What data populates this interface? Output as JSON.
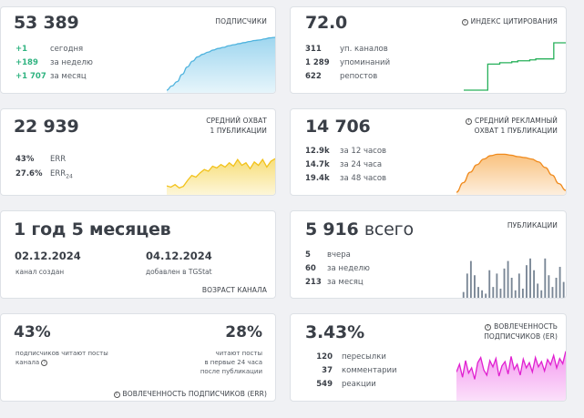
{
  "subscribers": {
    "total": "53 389",
    "header": "ПОДПИСЧИКИ",
    "rows": [
      {
        "value": "+1",
        "label": "сегодня"
      },
      {
        "value": "+189",
        "label": "за неделю"
      },
      {
        "value": "+1 707",
        "label": "за месяц"
      }
    ]
  },
  "citation": {
    "value": "72.0",
    "header": "ИНДЕКС ЦИТИРОВАНИЯ",
    "rows": [
      {
        "value": "311",
        "label": "уп. каналов"
      },
      {
        "value": "1 289",
        "label": "упоминаний"
      },
      {
        "value": "622",
        "label": "репостов"
      }
    ]
  },
  "avg_reach": {
    "value": "22 939",
    "header_line1": "СРЕДНИЙ ОХВАТ",
    "header_line2": "1 ПУБЛИКАЦИИ",
    "err_value": "43%",
    "err_label": "ERR",
    "err24_value": "27.6%",
    "err24_label": "ERR",
    "err24_sub": "24"
  },
  "ad_reach": {
    "value": "14 706",
    "header_line1": "СРЕДНИЙ РЕКЛАМНЫЙ",
    "header_line2": "ОХВАТ 1 ПУБЛИКАЦИИ",
    "rows": [
      {
        "value": "12.9k",
        "label": "за 12 часов"
      },
      {
        "value": "14.7k",
        "label": "за 24 часа"
      },
      {
        "value": "19.4k",
        "label": "за 48 часов"
      }
    ]
  },
  "age": {
    "value": "1 год 5 месяцев",
    "created_date": "02.12.2024",
    "created_label": "канал создан",
    "added_date": "04.12.2024",
    "added_label": "добавлен в TGStat",
    "footer": "ВОЗРАСТ КАНАЛА"
  },
  "posts": {
    "value": "5 916",
    "value_suffix": "всего",
    "header": "ПУБЛИКАЦИИ",
    "rows": [
      {
        "value": "5",
        "label": "вчера"
      },
      {
        "value": "60",
        "label": "за неделю"
      },
      {
        "value": "213",
        "label": "за месяц"
      }
    ]
  },
  "subscriber_engagement": {
    "left_value": "43%",
    "left_label_line1": "подписчиков читают посты",
    "left_label_line2": "канала",
    "right_value": "28%",
    "right_label_line1": "читают посты",
    "right_label_line2": "в первые 24 часа",
    "right_label_line3": "после публикации",
    "footer": "ВОВЛЕЧЕННОСТЬ ПОДПИСЧИКОВ (ERR)"
  },
  "engagement": {
    "value": "3.43%",
    "header_line1": "ВОВЛЕЧЕННОСТЬ",
    "header_line2": "ПОДПИСЧИКОВ (ER)",
    "rows": [
      {
        "value": "120",
        "label": "пересылки"
      },
      {
        "value": "37",
        "label": "комментарии"
      },
      {
        "value": "549",
        "label": "реакции"
      }
    ]
  },
  "colors": {
    "blue_line": "#4fb3de",
    "green_line": "#27b05a",
    "yellow_line": "#f2c21b",
    "orange_line": "#f08a1c",
    "bars": "#7a8796",
    "magenta_line": "#e020d0",
    "positive": "#2fb380"
  },
  "chart_data": [
    {
      "type": "area",
      "name": "subscribers_trend",
      "values": [
        0,
        8,
        16,
        30,
        44,
        55,
        63,
        68,
        72,
        76,
        79,
        81,
        84,
        86,
        88,
        90,
        92,
        94,
        95,
        97,
        99,
        100
      ]
    },
    {
      "type": "line",
      "name": "citation_step",
      "values": [
        0,
        0,
        0,
        0,
        55,
        55,
        58,
        58,
        60,
        62,
        62,
        64,
        66,
        66,
        66,
        100,
        100,
        100
      ]
    },
    {
      "type": "area",
      "name": "avg_reach_trend",
      "values": [
        15,
        12,
        18,
        10,
        14,
        28,
        40,
        36,
        46,
        54,
        50,
        62,
        58,
        66,
        60,
        70,
        62,
        78,
        64,
        70,
        56,
        72,
        64,
        78,
        60,
        74,
        80
      ]
    },
    {
      "type": "area",
      "name": "ad_reach_curve",
      "values": [
        0,
        20,
        42,
        58,
        70,
        77,
        80,
        80,
        78,
        75,
        73,
        70,
        64,
        52,
        36,
        18,
        4
      ]
    },
    {
      "type": "bar",
      "name": "posts_daily",
      "values": [
        8,
        30,
        45,
        28,
        14,
        10,
        6,
        34,
        14,
        30,
        12,
        36,
        45,
        25,
        10,
        30,
        12,
        40,
        48,
        34,
        18,
        10,
        48,
        28,
        14,
        25,
        38,
        20
      ]
    },
    {
      "type": "area",
      "name": "er_trend",
      "values": [
        50,
        65,
        40,
        72,
        48,
        58,
        36,
        68,
        78,
        54,
        44,
        72,
        60,
        76,
        42,
        62,
        70,
        46,
        80,
        55,
        65,
        44,
        75,
        58,
        68,
        50,
        78,
        60,
        70,
        52,
        74,
        64,
        82,
        58,
        76,
        66,
        90
      ]
    }
  ]
}
